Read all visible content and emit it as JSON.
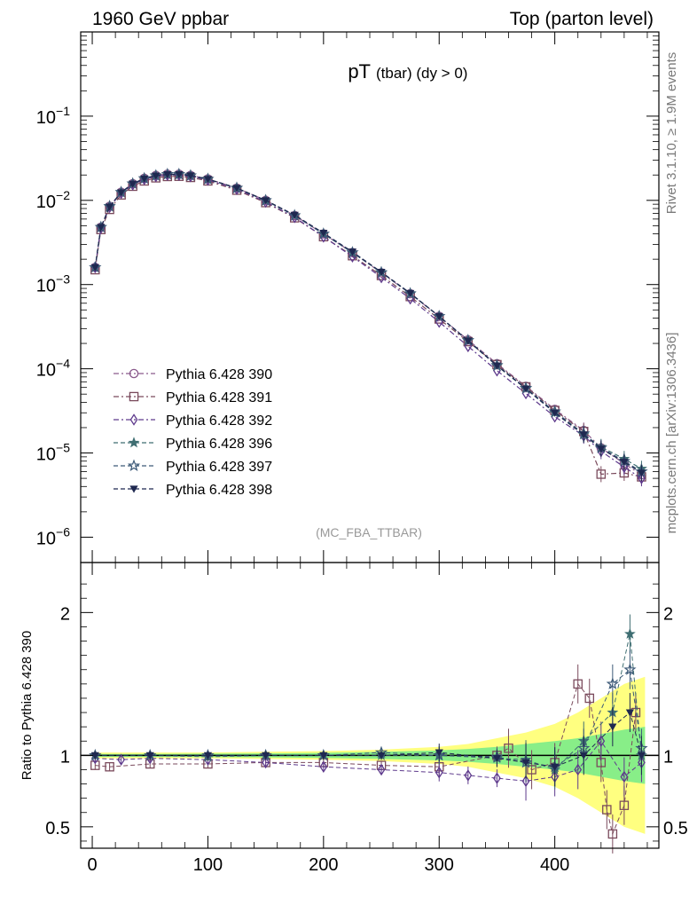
{
  "header": {
    "left": "1960 GeV ppbar",
    "right": "Top (parton level)"
  },
  "side_labels": {
    "rivet": "Rivet 3.1.10, ≥ 1.9M events",
    "mcplots": "mcplots.cern.ch [arXiv:1306.3436]"
  },
  "chart_data": [
    {
      "type": "line",
      "panel": "main",
      "title_main": "pT",
      "title_sub": "(tbar) (dy > 0)",
      "analysis_label": "(MC_FBA_TTBAR)",
      "y_scale": "log",
      "xlim": [
        -10,
        490
      ],
      "ylim": [
        5e-07,
        1.0
      ],
      "y_ticks": [
        {
          "value": 0.1,
          "base": "10",
          "exp": "−1"
        },
        {
          "value": 0.01,
          "base": "10",
          "exp": "−2"
        },
        {
          "value": 0.001,
          "base": "10",
          "exp": "−3"
        },
        {
          "value": 0.0001,
          "base": "10",
          "exp": "−4"
        },
        {
          "value": 1e-05,
          "base": "10",
          "exp": "−5"
        },
        {
          "value": 1e-06,
          "base": "10",
          "exp": "−6"
        }
      ],
      "legend_position": "lower-left",
      "series": [
        {
          "name": "Pythia 6.428 390",
          "color": "#8a5a8c",
          "marker": "circle-open",
          "dash": "6,3,2,3",
          "x": [
            2.5,
            7.5,
            15,
            25,
            35,
            45,
            55,
            65,
            75,
            85,
            100,
            125,
            150,
            175,
            200,
            225,
            250,
            275,
            300,
            325,
            350,
            375,
            400,
            425,
            440,
            460,
            475
          ],
          "y": [
            0.0016,
            0.0048,
            0.0085,
            0.0125,
            0.0158,
            0.0183,
            0.0198,
            0.0205,
            0.0205,
            0.0198,
            0.018,
            0.014,
            0.01,
            0.0066,
            0.004,
            0.0024,
            0.00138,
            0.00078,
            0.00042,
            0.00022,
            0.000115,
            6.2e-05,
            3.3e-05,
            1.85e-05,
            1.15e-05,
            7.5e-06,
            5.5e-06
          ]
        },
        {
          "name": "Pythia 6.428 391",
          "color": "#7a4a5c",
          "marker": "square-open",
          "dash": "6,3,2,3",
          "x": [
            2.5,
            7.5,
            15,
            25,
            35,
            45,
            55,
            65,
            75,
            85,
            100,
            125,
            150,
            175,
            200,
            225,
            250,
            275,
            300,
            325,
            350,
            375,
            400,
            425,
            440,
            460,
            475
          ],
          "y": [
            0.0015,
            0.0045,
            0.0078,
            0.0116,
            0.0147,
            0.017,
            0.0185,
            0.0192,
            0.0193,
            0.0187,
            0.017,
            0.0132,
            0.0094,
            0.0062,
            0.0037,
            0.0022,
            0.00128,
            0.00072,
            0.00039,
            0.00021,
            0.000112,
            6.1e-05,
            3.2e-05,
            1.8e-05,
            5.6e-06,
            5.8e-06,
            5.2e-06
          ]
        },
        {
          "name": "Pythia 6.428 392",
          "color": "#5e3a8c",
          "marker": "diamond-open",
          "dash": "6,3,2,3",
          "x": [
            2.5,
            7.5,
            15,
            25,
            35,
            45,
            55,
            65,
            75,
            85,
            100,
            125,
            150,
            175,
            200,
            225,
            250,
            275,
            300,
            325,
            350,
            375,
            400,
            425,
            440,
            460,
            475
          ],
          "y": [
            0.0016,
            0.0047,
            0.0083,
            0.0122,
            0.0154,
            0.0178,
            0.0193,
            0.02,
            0.02,
            0.0193,
            0.0175,
            0.0136,
            0.0096,
            0.0063,
            0.0037,
            0.00215,
            0.00122,
            0.00068,
            0.00036,
            0.000185,
            9.5e-05,
            5.1e-05,
            2.7e-05,
            1.6e-05,
            1.05e-05,
            6.8e-06,
            5e-06
          ]
        },
        {
          "name": "Pythia 6.428 396",
          "color": "#3f6e72",
          "marker": "star-filled",
          "dash": "5,3",
          "x": [
            2.5,
            7.5,
            15,
            25,
            35,
            45,
            55,
            65,
            75,
            85,
            100,
            125,
            150,
            175,
            200,
            225,
            250,
            275,
            300,
            325,
            350,
            375,
            400,
            425,
            440,
            460,
            475
          ],
          "y": [
            0.0016,
            0.0048,
            0.0084,
            0.0124,
            0.0157,
            0.0181,
            0.0196,
            0.0203,
            0.0203,
            0.0196,
            0.0178,
            0.0139,
            0.0099,
            0.0066,
            0.004,
            0.0024,
            0.0014,
            0.00079,
            0.00042,
            0.000215,
            0.000108,
            5.8e-05,
            3e-05,
            1.65e-05,
            1.18e-05,
            8.5e-06,
            6.5e-06
          ]
        },
        {
          "name": "Pythia 6.428 397",
          "color": "#3d5a78",
          "marker": "star-open",
          "dash": "5,3",
          "x": [
            2.5,
            7.5,
            15,
            25,
            35,
            45,
            55,
            65,
            75,
            85,
            100,
            125,
            150,
            175,
            200,
            225,
            250,
            275,
            300,
            325,
            350,
            375,
            400,
            425,
            440,
            460,
            475
          ],
          "y": [
            0.0016,
            0.0048,
            0.0085,
            0.0125,
            0.0158,
            0.0182,
            0.0197,
            0.0204,
            0.0204,
            0.0197,
            0.0179,
            0.014,
            0.01,
            0.0066,
            0.004,
            0.0024,
            0.00139,
            0.00078,
            0.00042,
            0.000218,
            0.00011,
            5.9e-05,
            3.1e-05,
            1.7e-05,
            1.15e-05,
            8e-06,
            6e-06
          ]
        },
        {
          "name": "Pythia 6.428 398",
          "color": "#1f2850",
          "marker": "triangle-down-filled",
          "dash": "5,3",
          "x": [
            2.5,
            7.5,
            15,
            25,
            35,
            45,
            55,
            65,
            75,
            85,
            100,
            125,
            150,
            175,
            200,
            225,
            250,
            275,
            300,
            325,
            350,
            375,
            400,
            425,
            440,
            460,
            475
          ],
          "y": [
            0.0016,
            0.0048,
            0.0084,
            0.0124,
            0.0157,
            0.0181,
            0.0196,
            0.0203,
            0.0203,
            0.0197,
            0.0179,
            0.014,
            0.01,
            0.0067,
            0.0041,
            0.00245,
            0.00141,
            0.00079,
            0.00042,
            0.000215,
            0.000109,
            5.8e-05,
            3e-05,
            1.65e-05,
            1.12e-05,
            7.8e-06,
            5.8e-06
          ]
        }
      ]
    },
    {
      "type": "line",
      "panel": "ratio",
      "ylabel": "Ratio to Pythia 6.428 390",
      "xlim": [
        -10,
        490
      ],
      "ylim": [
        0.35,
        2.35
      ],
      "x_ticks": [
        0,
        100,
        200,
        300,
        400
      ],
      "y_ticks": [
        0.5,
        1,
        2
      ],
      "y_tick_labels": [
        "0.5",
        "1",
        "2"
      ],
      "bands": [
        {
          "name": "stat-band-yellow",
          "color": "#ffff80",
          "x": [
            2.5,
            50,
            100,
            150,
            200,
            250,
            300,
            325,
            350,
            375,
            400,
            420,
            440,
            460,
            478
          ],
          "halfwidth": [
            0.02,
            0.02,
            0.02,
            0.025,
            0.03,
            0.04,
            0.06,
            0.08,
            0.12,
            0.16,
            0.22,
            0.3,
            0.4,
            0.5,
            0.55
          ]
        },
        {
          "name": "stat-band-green",
          "color": "#88ee88",
          "x": [
            2.5,
            50,
            100,
            150,
            200,
            250,
            300,
            325,
            350,
            375,
            400,
            420,
            440,
            460,
            478
          ],
          "halfwidth": [
            0.01,
            0.01,
            0.012,
            0.014,
            0.018,
            0.025,
            0.035,
            0.045,
            0.06,
            0.08,
            0.1,
            0.12,
            0.15,
            0.18,
            0.2
          ]
        }
      ],
      "series": [
        {
          "name": "Pythia 6.428 391",
          "color": "#7a4a5c",
          "marker": "square-open",
          "x": [
            2.5,
            15,
            50,
            100,
            150,
            200,
            250,
            300,
            350,
            360,
            380,
            400,
            420,
            430,
            440,
            445,
            450,
            460,
            470
          ],
          "y": [
            0.93,
            0.92,
            0.94,
            0.94,
            0.95,
            0.95,
            0.93,
            0.92,
            1.0,
            1.05,
            0.9,
            0.95,
            1.5,
            1.4,
            0.95,
            0.62,
            0.45,
            0.65,
            1.3
          ]
        },
        {
          "name": "Pythia 6.428 392",
          "color": "#5e3a8c",
          "marker": "diamond-open",
          "x": [
            2.5,
            25,
            50,
            100,
            150,
            200,
            250,
            300,
            325,
            350,
            375,
            400,
            420,
            440,
            460,
            475
          ],
          "y": [
            0.98,
            0.97,
            0.98,
            0.97,
            0.95,
            0.92,
            0.9,
            0.88,
            0.86,
            0.84,
            0.82,
            0.85,
            0.9,
            1.1,
            0.85,
            0.95
          ]
        },
        {
          "name": "Pythia 6.428 396",
          "color": "#3f6e72",
          "marker": "star-filled",
          "x": [
            2.5,
            50,
            100,
            150,
            200,
            250,
            300,
            350,
            375,
            400,
            425,
            450,
            465,
            475
          ],
          "y": [
            1.0,
            1.0,
            0.99,
            1.0,
            1.0,
            1.0,
            1.0,
            0.98,
            0.97,
            0.9,
            1.1,
            1.3,
            1.85,
            1.0
          ]
        },
        {
          "name": "Pythia 6.428 397",
          "color": "#3d5a78",
          "marker": "star-open",
          "x": [
            2.5,
            50,
            100,
            150,
            200,
            250,
            300,
            350,
            375,
            400,
            425,
            450,
            465,
            475
          ],
          "y": [
            1.0,
            1.0,
            1.0,
            1.0,
            1.0,
            1.02,
            1.0,
            0.99,
            0.95,
            0.92,
            1.05,
            1.5,
            1.6,
            1.05
          ]
        },
        {
          "name": "Pythia 6.428 398",
          "color": "#1f2850",
          "marker": "triangle-down-filled",
          "x": [
            2.5,
            50,
            100,
            150,
            200,
            250,
            300,
            350,
            375,
            400,
            425,
            450,
            465,
            475
          ],
          "y": [
            1.0,
            1.0,
            1.0,
            1.0,
            1.0,
            1.0,
            1.02,
            0.98,
            0.95,
            0.92,
            1.0,
            1.2,
            1.3,
            1.0
          ]
        }
      ]
    }
  ]
}
